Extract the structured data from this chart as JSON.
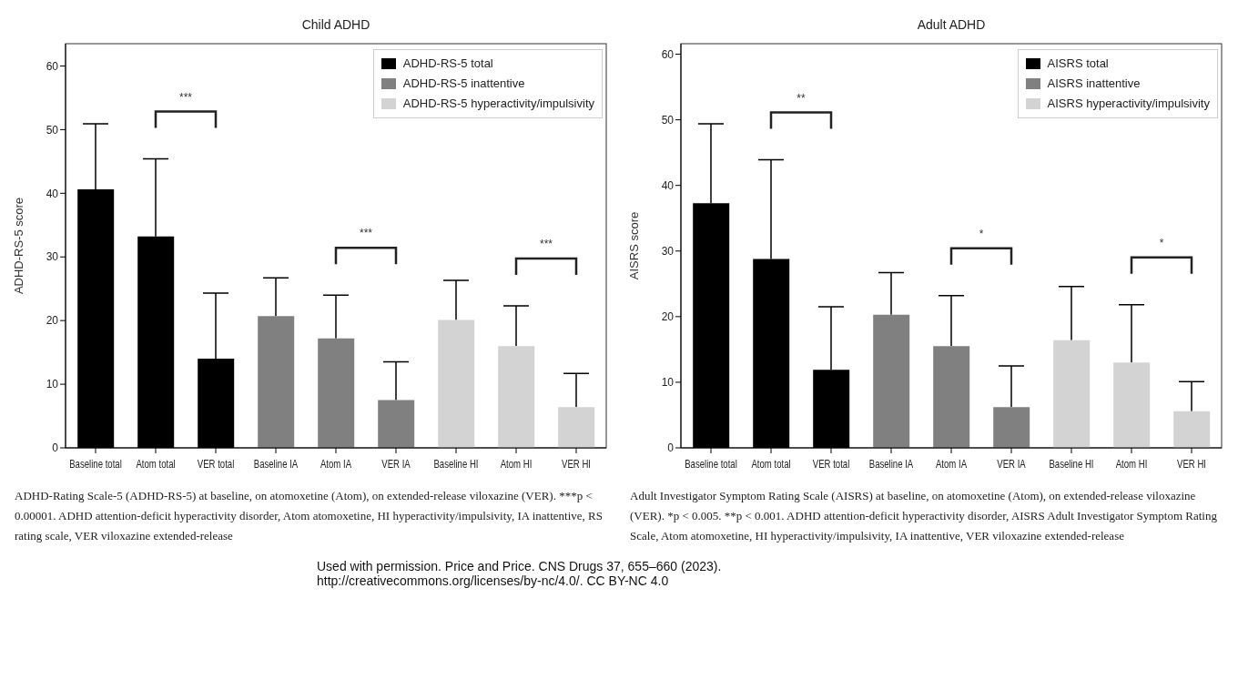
{
  "chart_data": [
    {
      "type": "bar",
      "title": "Child ADHD",
      "ylabel": "ADHD-RS-5 score",
      "categories": [
        "Baseline total",
        "Atom total",
        "VER total",
        "Baseline IA",
        "Atom IA",
        "VER IA",
        "Baseline HI",
        "Atom HI",
        "VER HI"
      ],
      "series": [
        {
          "name": "ADHD-RS-5 total",
          "color": "#000000",
          "values": [
            40.6,
            33.2,
            14.0,
            null,
            null,
            null,
            null,
            null,
            null
          ],
          "errors": [
            [
              40.6,
              50.9
            ],
            [
              33.2,
              45.4
            ],
            [
              14.0,
              24.3
            ],
            null,
            null,
            null,
            null,
            null,
            null
          ]
        },
        {
          "name": "ADHD-RS-5 inattentive",
          "color": "#808080",
          "values": [
            null,
            null,
            null,
            20.7,
            17.2,
            7.5,
            null,
            null,
            null
          ],
          "errors": [
            null,
            null,
            null,
            [
              20.7,
              26.7
            ],
            [
              17.2,
              24.0
            ],
            [
              7.5,
              13.5
            ],
            null,
            null,
            null
          ]
        },
        {
          "name": "ADHD-RS-5 hyperactivity/impulsivity",
          "color": "#d3d3d3",
          "values": [
            null,
            null,
            null,
            null,
            null,
            null,
            20.1,
            16.0,
            6.4
          ],
          "errors": [
            null,
            null,
            null,
            null,
            null,
            null,
            [
              20.1,
              26.3
            ],
            [
              16.0,
              22.3
            ],
            [
              6.4,
              11.7
            ]
          ]
        }
      ],
      "ylim": [
        0,
        63.5
      ],
      "yticks": [
        0,
        10,
        20,
        30,
        40,
        50,
        60
      ],
      "grid": false,
      "legend": "top right",
      "annotations": [
        "***",
        "***",
        "***",
        "ADHD-Rating Scale-5 (ADHD-RS-5) at baseline, on atomoxetine (Atom), on extended-release viloxazine (VER). ***p < 0.00001. ADHD attention-deficit hyperactivity disorder, Atom atomoxetine, HI hyperactivity/impulsivity, IA inattentive, RS rating scale, VER viloxazine extended-release",
        "Used with permission. Price and Price. CNS Drugs 37, 655–660 (2023).  http://creativecommons.org/licenses/by-nc/4.0/. CC BY-NC 4.0"
      ]
    },
    {
      "type": "bar",
      "title": "Adult ADHD",
      "ylabel": "AISRS score",
      "categories": [
        "Baseline total",
        "Atom total",
        "VER total",
        "Baseline IA",
        "Atom IA",
        "VER IA",
        "Baseline HI",
        "Atom HI",
        "VER HI"
      ],
      "series": [
        {
          "name": "AISRS total",
          "color": "#000000",
          "values": [
            37.3,
            28.8,
            11.9,
            null,
            null,
            null,
            null,
            null,
            null
          ],
          "errors": [
            [
              37.3,
              49.4
            ],
            [
              28.8,
              43.9
            ],
            [
              11.9,
              21.5
            ],
            null,
            null,
            null,
            null,
            null,
            null
          ]
        },
        {
          "name": "AISRS inattentive",
          "color": "#808080",
          "values": [
            null,
            null,
            null,
            20.3,
            15.5,
            6.2,
            null,
            null,
            null
          ],
          "errors": [
            null,
            null,
            null,
            [
              20.3,
              26.7
            ],
            [
              15.5,
              23.2
            ],
            [
              6.2,
              12.5
            ],
            null,
            null,
            null
          ]
        },
        {
          "name": "AISRS hyperactivity/impulsivity",
          "color": "#d3d3d3",
          "values": [
            null,
            null,
            null,
            null,
            null,
            null,
            16.4,
            13.0,
            5.6
          ],
          "errors": [
            null,
            null,
            null,
            null,
            null,
            null,
            [
              16.4,
              24.6
            ],
            [
              13.0,
              21.8
            ],
            [
              5.6,
              10.1
            ]
          ]
        }
      ],
      "ylim": [
        0,
        61.6
      ],
      "yticks": [
        0,
        10,
        20,
        30,
        40,
        50,
        60
      ],
      "grid": false,
      "legend": "top right",
      "annotations": [
        "**",
        "*",
        "*",
        "Adult Investigator Symptom Rating Scale (AISRS) at baseline, on atomoxetine (Atom), on extended-release viloxazine (VER). *p < 0.005. **p < 0.001. ADHD attention-deficit hyperactivity disorder, AISRS Adult Investigator Symptom Rating Scale, Atom atomoxetine, HI hyperactivity/impulsivity, IA inattentive, VER viloxazine extended-release"
      ]
    }
  ]
}
